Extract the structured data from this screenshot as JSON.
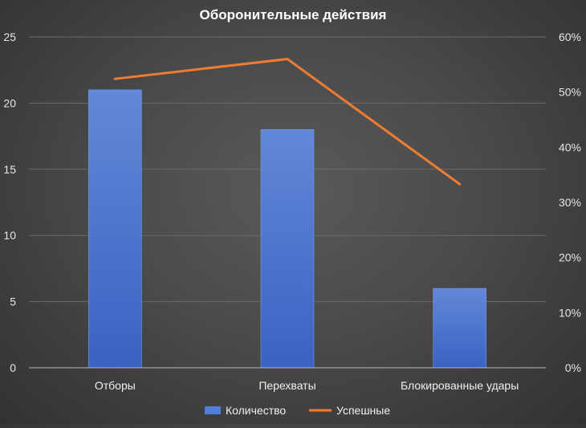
{
  "chart_data": {
    "type": "bar",
    "title": "Оборонительные действия",
    "categories": [
      "Отборы",
      "Перехваты",
      "Блокированные удары"
    ],
    "series": [
      {
        "name": "Количество",
        "type": "bar",
        "axis": "left",
        "color": "#4f7fd6",
        "values": [
          21,
          18,
          6
        ]
      },
      {
        "name": "Успешные",
        "type": "line",
        "axis": "right",
        "color": "#ef7d31",
        "values": [
          0.524,
          0.56,
          0.333
        ]
      }
    ],
    "ylim_left": [
      0,
      25
    ],
    "yticks_left": [
      "0",
      "5",
      "10",
      "15",
      "20",
      "25"
    ],
    "ylim_right": [
      0,
      0.6
    ],
    "yticks_right": [
      "0%",
      "10%",
      "20%",
      "30%",
      "40%",
      "50%",
      "60%"
    ],
    "grid": true,
    "legend_position": "bottom",
    "xlabel": "",
    "ylabel": ""
  }
}
